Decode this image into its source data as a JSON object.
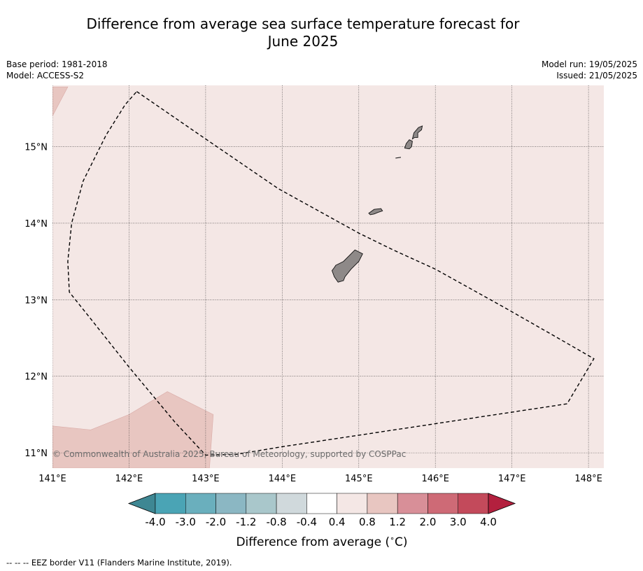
{
  "title_line1": "Difference from average sea surface temperature forecast for",
  "title_line2": "June 2025",
  "meta": {
    "base_period": "Base period: 1981-2018",
    "model": "Model: ACCESS-S2",
    "model_run": "Model run: 19/05/2025",
    "issued": "Issued: 21/05/2025"
  },
  "copyright": "© Commonwealth of Australia 2025, Bureau of Meteorology, supported by COSPPac",
  "footer": "-- -- -- EEZ border V11 (Flanders Marine Institute, 2019).",
  "colors": {
    "ocean_fill": "#f4e7e5",
    "warm_patch": "#e8c6c1",
    "land": "#8e8988",
    "scale": [
      "#3e8793",
      "#4aa4b5",
      "#6aafbd",
      "#8bb7c3",
      "#a9c7cb",
      "#d0d9dc",
      "#ffffff",
      "#f4e7e5",
      "#e8c6c1",
      "#d88f98",
      "#ce6a76",
      "#c34a5b",
      "#b3203e"
    ]
  },
  "chart_data": {
    "type": "heatmap",
    "xlim": [
      141.0,
      148.2
    ],
    "ylim": [
      10.8,
      15.8
    ],
    "x_ticks": [
      141,
      142,
      143,
      144,
      145,
      146,
      147,
      148
    ],
    "x_tick_labels": [
      "141°E",
      "142°E",
      "143°E",
      "144°E",
      "145°E",
      "146°E",
      "147°E",
      "148°E"
    ],
    "y_ticks": [
      11,
      12,
      13,
      14,
      15
    ],
    "y_tick_labels": [
      "11°N",
      "12°N",
      "13°N",
      "14°N",
      "15°N"
    ],
    "grid": true,
    "background_anomaly_range": "0.4 to 0.8",
    "warm_patches": [
      {
        "range": "0.8 to 1.2",
        "polygon": [
          [
            141.0,
            15.78
          ],
          [
            141.2,
            15.78
          ],
          [
            141.0,
            15.4
          ]
        ]
      },
      {
        "range": "0.8 to 1.2",
        "polygon": [
          [
            141.0,
            11.35
          ],
          [
            141.5,
            11.3
          ],
          [
            142.0,
            11.5
          ],
          [
            142.5,
            11.8
          ],
          [
            143.1,
            11.5
          ],
          [
            143.05,
            10.8
          ],
          [
            141.0,
            10.8
          ]
        ]
      }
    ],
    "islands": [
      {
        "name_visible": false,
        "polygon": [
          [
            144.7,
            13.45
          ],
          [
            144.8,
            13.5
          ],
          [
            144.9,
            13.6
          ],
          [
            144.95,
            13.65
          ],
          [
            145.05,
            13.6
          ],
          [
            145.0,
            13.5
          ],
          [
            144.9,
            13.4
          ],
          [
            144.82,
            13.3
          ],
          [
            144.8,
            13.25
          ],
          [
            144.73,
            13.23
          ],
          [
            144.68,
            13.3
          ],
          [
            144.65,
            13.38
          ],
          [
            144.68,
            13.42
          ]
        ]
      },
      {
        "name_visible": false,
        "polygon": [
          [
            145.13,
            14.13
          ],
          [
            145.2,
            14.18
          ],
          [
            145.29,
            14.19
          ],
          [
            145.31,
            14.16
          ],
          [
            145.25,
            14.14
          ],
          [
            145.2,
            14.12
          ],
          [
            145.15,
            14.11
          ]
        ]
      },
      {
        "name_visible": false,
        "polygon": [
          [
            145.6,
            14.98
          ],
          [
            145.62,
            15.04
          ],
          [
            145.66,
            15.09
          ],
          [
            145.7,
            15.07
          ],
          [
            145.69,
            15.0
          ],
          [
            145.66,
            14.97
          ]
        ]
      },
      {
        "name_visible": false,
        "polygon": [
          [
            145.7,
            15.1
          ],
          [
            145.72,
            15.18
          ],
          [
            145.78,
            15.25
          ],
          [
            145.83,
            15.27
          ],
          [
            145.82,
            15.22
          ],
          [
            145.77,
            15.18
          ],
          [
            145.77,
            15.12
          ],
          [
            145.73,
            15.12
          ]
        ]
      }
    ],
    "eez_border": [
      [
        142.1,
        15.72
      ],
      [
        143.0,
        15.1
      ],
      [
        143.95,
        14.45
      ],
      [
        145.0,
        13.87
      ],
      [
        145.45,
        13.65
      ],
      [
        146.0,
        13.4
      ],
      [
        146.9,
        12.9
      ],
      [
        147.6,
        12.5
      ],
      [
        148.07,
        12.23
      ],
      [
        147.72,
        11.64
      ],
      [
        146.0,
        11.38
      ],
      [
        144.0,
        11.08
      ],
      [
        143.4,
        10.98
      ],
      [
        143.0,
        10.97
      ],
      [
        142.6,
        11.4
      ],
      [
        142.0,
        12.12
      ],
      [
        141.5,
        12.75
      ],
      [
        141.22,
        13.1
      ],
      [
        141.2,
        13.5
      ],
      [
        141.25,
        14.0
      ],
      [
        141.4,
        14.55
      ],
      [
        141.7,
        15.15
      ],
      [
        141.95,
        15.55
      ],
      [
        142.1,
        15.72
      ]
    ],
    "colorbar": {
      "label": "Difference from average (",
      "unit_degree": "∘",
      "unit_letter": "C)",
      "levels": [
        -4.0,
        -3.0,
        -2.0,
        -1.2,
        -0.8,
        -0.4,
        0.4,
        0.8,
        1.2,
        2.0,
        3.0,
        4.0
      ],
      "tick_labels": [
        "-4.0",
        "-3.0",
        "-2.0",
        "-1.2",
        "-0.8",
        "-0.4",
        "0.4",
        "0.8",
        "1.2",
        "2.0",
        "3.0",
        "4.0"
      ],
      "extend": "both"
    }
  }
}
